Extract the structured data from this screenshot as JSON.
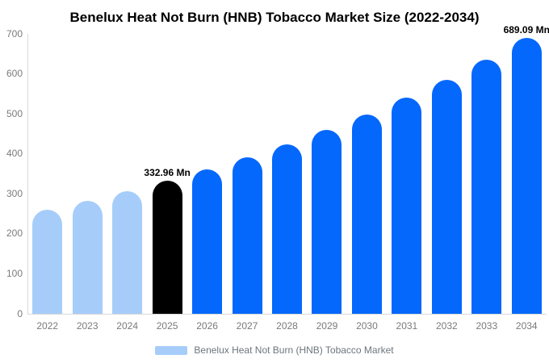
{
  "chart_data": {
    "type": "bar",
    "title": "Benelux Heat Not Burn (HNB) Tobacco Market Size (2022-2034)",
    "unit": "Mn",
    "categories": [
      "2022",
      "2023",
      "2024",
      "2025",
      "2026",
      "2027",
      "2028",
      "2029",
      "2030",
      "2031",
      "2032",
      "2033",
      "2034"
    ],
    "values": [
      261,
      283,
      307,
      332.96,
      361,
      391,
      424,
      460,
      499,
      541,
      586,
      636,
      689.09
    ],
    "bar_colors": [
      "#a6cdfa",
      "#a6cdfa",
      "#a6cdfa",
      "#000000",
      "#0568fc",
      "#0568fc",
      "#0568fc",
      "#0568fc",
      "#0568fc",
      "#0568fc",
      "#0568fc",
      "#0568fc",
      "#0568fc"
    ],
    "xlabel": "",
    "ylabel": "",
    "ylim": [
      0,
      700
    ],
    "yticks": [
      0,
      100,
      200,
      300,
      400,
      500,
      600,
      700
    ],
    "grid": false,
    "annotations": [
      {
        "index": 3,
        "category": "2025",
        "text": "332.96 Mn"
      },
      {
        "index": 12,
        "category": "2034",
        "text": "689.09 Mn"
      }
    ],
    "legend": {
      "position": "bottom",
      "items": [
        {
          "label": "Benelux Heat Not Burn (HNB) Tobacco Market",
          "color": "#a6cdfa"
        }
      ]
    }
  },
  "colors": {
    "background": "#ffffff",
    "axis_line": "#d9d9d9",
    "tick_text": "#7a7a7a",
    "legend_text": "#6c757d",
    "title_text": "#000000",
    "annotation_text": "#000000"
  }
}
